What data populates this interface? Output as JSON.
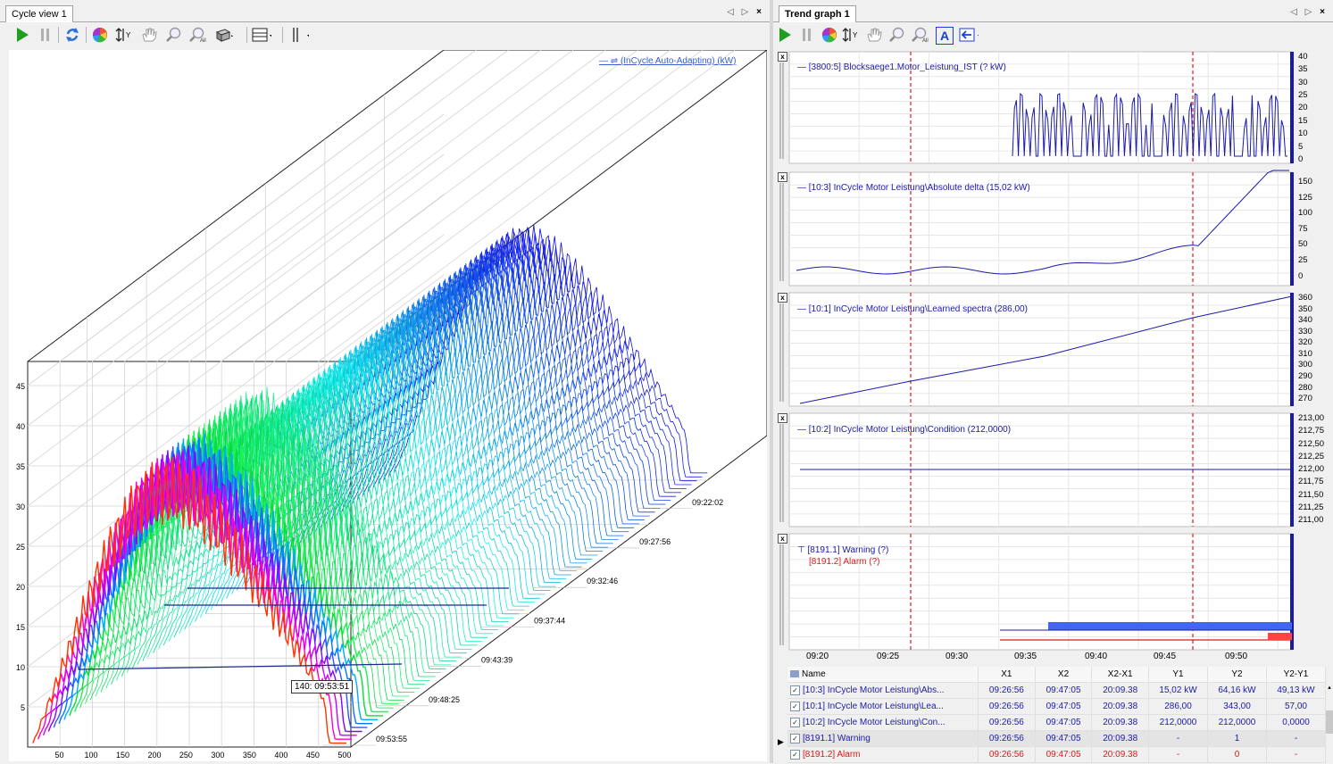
{
  "left": {
    "tab_title": "Cycle view 1",
    "tab_controls": "◁ ▷",
    "close": "×",
    "toolbar": [
      "play-icon",
      "pause-icon",
      "refresh-icon",
      "color-wheel-icon",
      "y-axis-scale-icon",
      "pan-hand-icon",
      "zoom-icon",
      "zoom-all-icon",
      "3d-view-icon",
      "layout-icon",
      "cursor-icon"
    ],
    "legend": "(InCycle Auto-Adapting) (kW)",
    "cursor_label": "140: 09:53:51",
    "y_ticks": [
      "5",
      "10",
      "15",
      "20",
      "25",
      "30",
      "35",
      "40",
      "45"
    ],
    "x_ticks": [
      "50",
      "100",
      "150",
      "200",
      "250",
      "300",
      "350",
      "400",
      "450",
      "500"
    ],
    "z_ticks": [
      "09:22:02",
      "09:27:56",
      "09:32:46",
      "09:37:44",
      "09:43:39",
      "09:48:25",
      "09:53:55"
    ]
  },
  "right": {
    "tab_title": "Trend graph 1",
    "tab_controls": "◁ ▷",
    "close": "×",
    "toolbar": [
      "play-icon",
      "pause-icon",
      "color-wheel-icon",
      "y-axis-scale-icon",
      "pan-hand-icon",
      "zoom-icon",
      "zoom-all-icon",
      "auto-scale-icon",
      "cursor-arrow-icon"
    ],
    "auto_label": "A",
    "subplots": [
      {
        "legend": "[3800:5] Blocksaege1.Motor_Leistung_IST (? kW)",
        "ticks": [
          "40",
          "35",
          "30",
          "25",
          "20",
          "15",
          "10",
          "5",
          "0"
        ]
      },
      {
        "legend": "[10:3] InCycle Motor Leistung\\Absolute delta (15,02 kW)",
        "ticks": [
          "150",
          "125",
          "100",
          "75",
          "50",
          "25",
          "0"
        ]
      },
      {
        "legend": "[10:1] InCycle Motor Leistung\\Learned spectra (286,00)",
        "ticks": [
          "360",
          "350",
          "340",
          "330",
          "320",
          "310",
          "300",
          "290",
          "280",
          "270"
        ]
      },
      {
        "legend": "[10:2] InCycle Motor Leistung\\Condition (212,0000)",
        "ticks": [
          "213,00",
          "212,75",
          "212,50",
          "212,25",
          "212,00",
          "211,75",
          "211,50",
          "211,25",
          "211,00"
        ]
      },
      {
        "legend": "[8191.1] Warning (?)",
        "legend2": "[8191.2] Alarm (?)",
        "ticks": []
      }
    ],
    "x_ticks": [
      "09:20",
      "09:25",
      "09:30",
      "09:35",
      "09:40",
      "09:45",
      "09:50"
    ],
    "table": {
      "headers": [
        "Name",
        "X1",
        "X2",
        "X2-X1",
        "Y1",
        "Y2",
        "Y2-Y1"
      ],
      "rows": [
        {
          "name": "[10:3] InCycle Motor Leistung\\Abs...",
          "x1": "09:26:56",
          "x2": "09:47:05",
          "dx": "20:09.38",
          "y1": "15,02 kW",
          "y2": "64,16 kW",
          "dy": "49,13 kW",
          "color": "blue",
          "checked": "✓"
        },
        {
          "name": "[10:1] InCycle Motor Leistung\\Lea...",
          "x1": "09:26:56",
          "x2": "09:47:05",
          "dx": "20:09.38",
          "y1": "286,00",
          "y2": "343,00",
          "dy": "57,00",
          "color": "blue",
          "checked": "✓"
        },
        {
          "name": "[10:2] InCycle Motor Leistung\\Con...",
          "x1": "09:26:56",
          "x2": "09:47:05",
          "dx": "20:09.38",
          "y1": "212,0000",
          "y2": "212,0000",
          "dy": "0,0000",
          "color": "blue",
          "checked": "✓"
        },
        {
          "name": "[8191.1] Warning",
          "x1": "09:26:56",
          "x2": "09:47:05",
          "dx": "20:09.38",
          "y1": "-",
          "y2": "1",
          "dy": "-",
          "color": "blue",
          "checked": "✓"
        },
        {
          "name": "[8191.2] Alarm",
          "x1": "09:26:56",
          "x2": "09:47:05",
          "dx": "20:09.38",
          "y1": "-",
          "y2": "0",
          "dy": "-",
          "color": "red",
          "checked": "✓"
        }
      ]
    }
  }
}
